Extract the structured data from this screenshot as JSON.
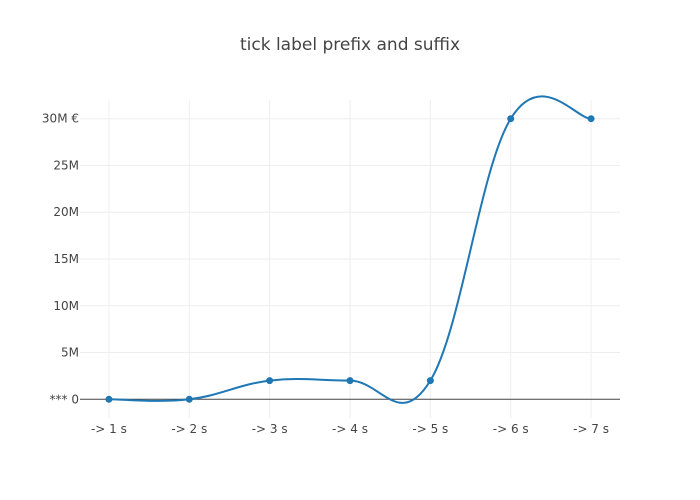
{
  "chart_data": {
    "type": "line",
    "title": "tick label prefix and suffix",
    "xlabel": "",
    "ylabel": "",
    "x": [
      1,
      2,
      3,
      4,
      5,
      6,
      7
    ],
    "x_tick_labels": [
      "-> 1 s",
      "-> 2 s",
      "-> 3 s",
      "-> 4 s",
      "-> 5 s",
      "-> 6 s",
      "-> 7 s"
    ],
    "series": [
      {
        "values": [
          0,
          0,
          2000000,
          2000000,
          2000000,
          30000000,
          30000000
        ]
      }
    ],
    "y_ticks": [
      0,
      5000000,
      10000000,
      15000000,
      20000000,
      25000000,
      30000000
    ],
    "y_tick_labels": [
      "*** 0",
      "5M",
      "10M",
      "15M",
      "20M",
      "25M",
      "30M €"
    ],
    "xlim": [
      0.64,
      7.36
    ],
    "ylim": [
      -2000000,
      32000000
    ],
    "grid": true,
    "legend": "none",
    "line_shape": "spline",
    "colors": {
      "series": "#1f77b4",
      "grid": "#eeeeee",
      "zero_line": "#444444",
      "text": "#444444"
    }
  }
}
